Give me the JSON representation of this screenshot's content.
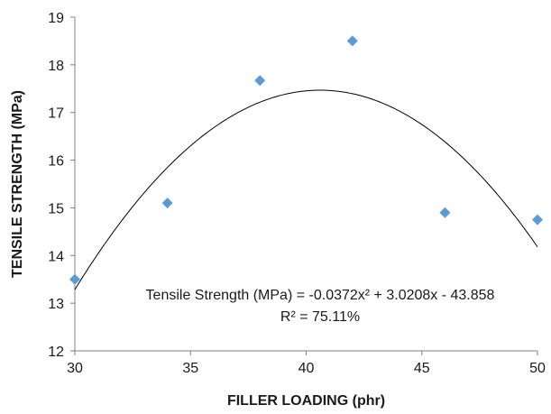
{
  "chart_data": {
    "type": "scatter",
    "xlabel": "FILLER LOADING (phr)",
    "ylabel": "TENSILE STRENGTH (MPa)",
    "xlim": [
      30,
      50
    ],
    "ylim": [
      12,
      19
    ],
    "x_ticks": [
      "30",
      "35",
      "40",
      "45",
      "50"
    ],
    "y_ticks": [
      "12",
      "13",
      "14",
      "15",
      "16",
      "17",
      "18",
      "19"
    ],
    "grid": false,
    "legend": "none",
    "series": [
      {
        "marker": "diamond",
        "color": "#5b9bd5",
        "points": [
          {
            "x": 30,
            "y": 13.5
          },
          {
            "x": 34,
            "y": 15.1
          },
          {
            "x": 38,
            "y": 17.67
          },
          {
            "x": 42,
            "y": 18.5
          },
          {
            "x": 46,
            "y": 14.9
          },
          {
            "x": 50,
            "y": 14.75
          }
        ]
      }
    ],
    "trendline": {
      "type": "polynomial",
      "order": 2,
      "coefficients": [
        -0.0372,
        3.0208,
        -43.858
      ],
      "color": "#000000"
    },
    "annotations": {
      "equation": "Tensile Strength (MPa) = -0.0372x² + 3.0208x - 43.858",
      "r_squared": "R² = 75.11%"
    }
  }
}
